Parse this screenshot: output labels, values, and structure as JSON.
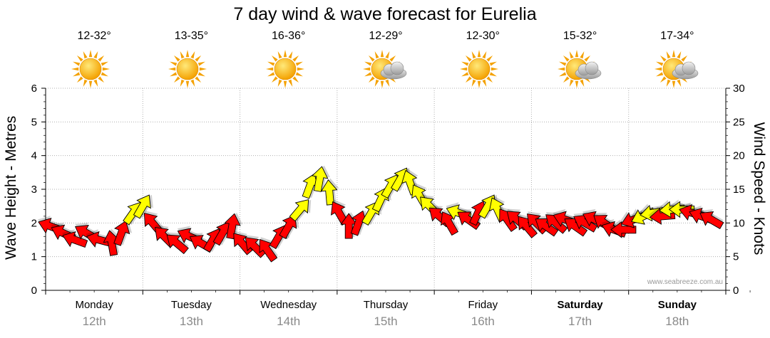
{
  "title": "7 day wind & wave forecast for Eurelia",
  "watermark": "www.seabreeze.com.au",
  "days": [
    {
      "name": "Monday",
      "date": "12th",
      "temp": "12-32°",
      "icon": "sunny-icon",
      "bold": false
    },
    {
      "name": "Tuesday",
      "date": "13th",
      "temp": "13-35°",
      "icon": "sunny-icon",
      "bold": false
    },
    {
      "name": "Wednesday",
      "date": "14th",
      "temp": "16-36°",
      "icon": "sunny-icon",
      "bold": false
    },
    {
      "name": "Thursday",
      "date": "15th",
      "temp": "12-29°",
      "icon": "partly-cloudy-icon",
      "bold": false
    },
    {
      "name": "Friday",
      "date": "16th",
      "temp": "12-30°",
      "icon": "sunny-icon",
      "bold": false
    },
    {
      "name": "Saturday",
      "date": "17th",
      "temp": "15-32°",
      "icon": "partly-cloudy-icon",
      "bold": true
    },
    {
      "name": "Sunday",
      "date": "18th",
      "temp": "17-34°",
      "icon": "partly-cloudy-icon",
      "bold": true
    }
  ],
  "chart_data": {
    "type": "scatter",
    "title": "7 day wind & wave forecast for Eurelia",
    "ylabel_left": "Wave Height - Metres",
    "ylabel_right": "Wind Speed - Knots",
    "left_axis": {
      "min": 0,
      "max": 6,
      "ticks": [
        0,
        1,
        2,
        3,
        4,
        5,
        6
      ]
    },
    "right_axis": {
      "min": 0,
      "max": 30,
      "ticks": [
        0,
        5,
        10,
        15,
        20,
        25,
        30
      ]
    },
    "categories": [
      "Monday",
      "Tuesday",
      "Wednesday",
      "Thursday",
      "Friday",
      "Saturday",
      "Sunday"
    ],
    "grid": true,
    "colors": {
      "strong_wind": "#ff0000",
      "moderate_wind": "#ffff00",
      "outline": "#000000"
    },
    "wind_series": {
      "name": "Wind",
      "note": "arrows plotted against the right axis (knots); arrow points in wind direction (degrees clockwise from east); yellow for stronger winds",
      "points": [
        {
          "t": 0.05,
          "kn": 9.5,
          "dir": 200,
          "c": "red"
        },
        {
          "t": 0.18,
          "kn": 8.5,
          "dir": 205,
          "c": "red"
        },
        {
          "t": 0.3,
          "kn": 7.5,
          "dir": 200,
          "c": "red"
        },
        {
          "t": 0.42,
          "kn": 8.5,
          "dir": 210,
          "c": "red"
        },
        {
          "t": 0.55,
          "kn": 7.5,
          "dir": 195,
          "c": "red"
        },
        {
          "t": 0.68,
          "kn": 7.0,
          "dir": 260,
          "c": "red"
        },
        {
          "t": 0.78,
          "kn": 8.5,
          "dir": 290,
          "c": "red"
        },
        {
          "t": 0.9,
          "kn": 11.5,
          "dir": 305,
          "c": "yellow"
        },
        {
          "t": 1.0,
          "kn": 12.5,
          "dir": 300,
          "c": "yellow"
        },
        {
          "t": 1.1,
          "kn": 10.0,
          "dir": 230,
          "c": "red"
        },
        {
          "t": 1.22,
          "kn": 8.0,
          "dir": 225,
          "c": "red"
        },
        {
          "t": 1.35,
          "kn": 7.0,
          "dir": 220,
          "c": "red"
        },
        {
          "t": 1.48,
          "kn": 8.0,
          "dir": 205,
          "c": "red"
        },
        {
          "t": 1.6,
          "kn": 7.0,
          "dir": 210,
          "c": "red"
        },
        {
          "t": 1.72,
          "kn": 7.5,
          "dir": 300,
          "c": "red"
        },
        {
          "t": 1.82,
          "kn": 8.5,
          "dir": 300,
          "c": "red"
        },
        {
          "t": 1.92,
          "kn": 9.5,
          "dir": 280,
          "c": "red"
        },
        {
          "t": 2.02,
          "kn": 7.0,
          "dir": 230,
          "c": "red"
        },
        {
          "t": 2.15,
          "kn": 6.5,
          "dir": 225,
          "c": "red"
        },
        {
          "t": 2.28,
          "kn": 6.0,
          "dir": 235,
          "c": "red"
        },
        {
          "t": 2.4,
          "kn": 8.0,
          "dir": 300,
          "c": "red"
        },
        {
          "t": 2.5,
          "kn": 9.5,
          "dir": 300,
          "c": "red"
        },
        {
          "t": 2.62,
          "kn": 12.0,
          "dir": 310,
          "c": "yellow"
        },
        {
          "t": 2.72,
          "kn": 15.5,
          "dir": 290,
          "c": "yellow"
        },
        {
          "t": 2.82,
          "kn": 16.5,
          "dir": 280,
          "c": "yellow"
        },
        {
          "t": 2.92,
          "kn": 14.5,
          "dir": 265,
          "c": "yellow"
        },
        {
          "t": 3.02,
          "kn": 11.5,
          "dir": 240,
          "c": "red"
        },
        {
          "t": 3.12,
          "kn": 9.5,
          "dir": 270,
          "c": "red"
        },
        {
          "t": 3.22,
          "kn": 10.0,
          "dir": 290,
          "c": "red"
        },
        {
          "t": 3.35,
          "kn": 11.5,
          "dir": 300,
          "c": "yellow"
        },
        {
          "t": 3.45,
          "kn": 13.5,
          "dir": 295,
          "c": "yellow"
        },
        {
          "t": 3.55,
          "kn": 15.5,
          "dir": 300,
          "c": "yellow"
        },
        {
          "t": 3.65,
          "kn": 16.5,
          "dir": 300,
          "c": "yellow"
        },
        {
          "t": 3.75,
          "kn": 16.0,
          "dir": 250,
          "c": "yellow"
        },
        {
          "t": 3.85,
          "kn": 14.0,
          "dir": 240,
          "c": "yellow"
        },
        {
          "t": 3.95,
          "kn": 12.5,
          "dir": 225,
          "c": "yellow"
        },
        {
          "t": 4.05,
          "kn": 11.0,
          "dir": 220,
          "c": "red"
        },
        {
          "t": 4.15,
          "kn": 10.0,
          "dir": 240,
          "c": "red"
        },
        {
          "t": 4.25,
          "kn": 11.5,
          "dir": 200,
          "c": "yellow"
        },
        {
          "t": 4.35,
          "kn": 10.5,
          "dir": 215,
          "c": "red"
        },
        {
          "t": 4.45,
          "kn": 11.5,
          "dir": 295,
          "c": "red"
        },
        {
          "t": 4.55,
          "kn": 12.5,
          "dir": 300,
          "c": "yellow"
        },
        {
          "t": 4.65,
          "kn": 12.0,
          "dir": 245,
          "c": "yellow"
        },
        {
          "t": 4.75,
          "kn": 10.5,
          "dir": 235,
          "c": "red"
        },
        {
          "t": 4.85,
          "kn": 10.5,
          "dir": 220,
          "c": "red"
        },
        {
          "t": 4.95,
          "kn": 9.5,
          "dir": 230,
          "c": "red"
        },
        {
          "t": 5.05,
          "kn": 10.0,
          "dir": 225,
          "c": "red"
        },
        {
          "t": 5.15,
          "kn": 9.5,
          "dir": 215,
          "c": "red"
        },
        {
          "t": 5.25,
          "kn": 10.0,
          "dir": 220,
          "c": "red"
        },
        {
          "t": 5.35,
          "kn": 10.5,
          "dir": 200,
          "c": "red"
        },
        {
          "t": 5.45,
          "kn": 9.5,
          "dir": 215,
          "c": "red"
        },
        {
          "t": 5.55,
          "kn": 10.0,
          "dir": 210,
          "c": "red"
        },
        {
          "t": 5.65,
          "kn": 10.5,
          "dir": 205,
          "c": "red"
        },
        {
          "t": 5.75,
          "kn": 10.0,
          "dir": 215,
          "c": "red"
        },
        {
          "t": 5.85,
          "kn": 9.0,
          "dir": 200,
          "c": "red"
        },
        {
          "t": 5.95,
          "kn": 9.0,
          "dir": 180,
          "c": "red"
        },
        {
          "t": 6.05,
          "kn": 10.5,
          "dir": 160,
          "c": "red"
        },
        {
          "t": 6.15,
          "kn": 11.0,
          "dir": 155,
          "c": "yellow"
        },
        {
          "t": 6.25,
          "kn": 11.5,
          "dir": 170,
          "c": "yellow"
        },
        {
          "t": 6.35,
          "kn": 11.0,
          "dir": 175,
          "c": "red"
        },
        {
          "t": 6.45,
          "kn": 12.0,
          "dir": 175,
          "c": "yellow"
        },
        {
          "t": 6.55,
          "kn": 12.0,
          "dir": 180,
          "c": "yellow"
        },
        {
          "t": 6.65,
          "kn": 11.5,
          "dir": 195,
          "c": "red"
        },
        {
          "t": 6.75,
          "kn": 11.0,
          "dir": 200,
          "c": "red"
        },
        {
          "t": 6.85,
          "kn": 10.5,
          "dir": 210,
          "c": "red"
        }
      ]
    }
  }
}
